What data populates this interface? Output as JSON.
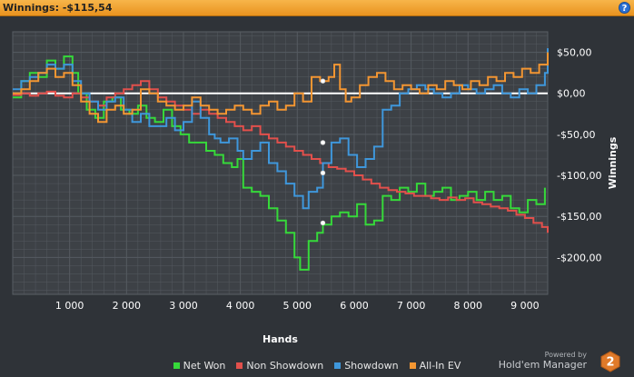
{
  "header": {
    "title": "Winnings: -$115,54",
    "help_icon": "help-icon"
  },
  "brand": {
    "powered": "Powered by",
    "name": "Hold'em Manager",
    "badge": "2"
  },
  "colors": {
    "background": "#2f3338",
    "plot_bg": "#3d4146",
    "grid": "#555a60",
    "zero_line": "#ffffff",
    "text": "#ffffff"
  },
  "chart_data": {
    "type": "line",
    "xlabel": "Hands",
    "ylabel": "Winnings",
    "xlim": [
      0,
      9400
    ],
    "ylim": [
      -245,
      75
    ],
    "x_ticks": [
      1000,
      2000,
      3000,
      4000,
      5000,
      6000,
      7000,
      8000,
      9000
    ],
    "x_tick_labels": [
      "1 000",
      "2 000",
      "3 000",
      "4 000",
      "5 000",
      "6 000",
      "7 000",
      "8 000",
      "9 000"
    ],
    "y_ticks": [
      50,
      0,
      -50,
      -100,
      -150,
      -200
    ],
    "y_tick_labels": [
      "$50,00",
      "$0,00",
      "-$50,00",
      "-$100,00",
      "-$150,00",
      "-$200,00"
    ],
    "grid": true,
    "legend_position": "bottom",
    "series": [
      {
        "name": "Net Won",
        "color": "#36d93a",
        "x": [
          0,
          150,
          300,
          450,
          600,
          750,
          900,
          1050,
          1150,
          1300,
          1450,
          1600,
          1750,
          1900,
          2050,
          2200,
          2350,
          2500,
          2650,
          2800,
          2950,
          3100,
          3250,
          3400,
          3550,
          3700,
          3850,
          3950,
          4050,
          4200,
          4350,
          4500,
          4650,
          4800,
          4950,
          5050,
          5200,
          5350,
          5450,
          5600,
          5750,
          5900,
          6050,
          6200,
          6350,
          6500,
          6650,
          6800,
          6950,
          7100,
          7250,
          7400,
          7550,
          7700,
          7850,
          8000,
          8150,
          8300,
          8450,
          8600,
          8750,
          8900,
          9050,
          9200,
          9350
        ],
        "y": [
          -5,
          15,
          25,
          20,
          40,
          30,
          45,
          25,
          0,
          -20,
          -30,
          -10,
          -5,
          -20,
          -25,
          -15,
          -30,
          -35,
          -20,
          -40,
          -50,
          -60,
          -60,
          -70,
          -75,
          -85,
          -90,
          -80,
          -115,
          -120,
          -125,
          -140,
          -155,
          -170,
          -200,
          -215,
          -180,
          -170,
          -160,
          -150,
          -145,
          -150,
          -135,
          -160,
          -155,
          -125,
          -130,
          -115,
          -120,
          -110,
          -125,
          -120,
          -115,
          -130,
          -125,
          -120,
          -130,
          -120,
          -130,
          -125,
          -140,
          -145,
          -130,
          -135,
          -115
        ]
      },
      {
        "name": "Non Showdown",
        "color": "#e2504c",
        "x": [
          0,
          150,
          300,
          450,
          600,
          750,
          900,
          1050,
          1200,
          1350,
          1500,
          1650,
          1800,
          1950,
          2100,
          2250,
          2400,
          2550,
          2700,
          2850,
          3000,
          3150,
          3300,
          3450,
          3600,
          3750,
          3900,
          4050,
          4200,
          4350,
          4500,
          4650,
          4800,
          4950,
          5100,
          5250,
          5400,
          5550,
          5700,
          5850,
          6000,
          6150,
          6300,
          6450,
          6600,
          6750,
          6900,
          7050,
          7200,
          7350,
          7500,
          7650,
          7800,
          7950,
          8100,
          8250,
          8400,
          8550,
          8700,
          8850,
          9000,
          9150,
          9300,
          9400
        ],
        "y": [
          -2,
          0,
          -3,
          0,
          2,
          -3,
          -5,
          0,
          -5,
          -10,
          -15,
          -5,
          0,
          5,
          10,
          15,
          5,
          -5,
          -10,
          -15,
          -20,
          -25,
          -20,
          -25,
          -30,
          -35,
          -40,
          -45,
          -40,
          -50,
          -55,
          -60,
          -65,
          -70,
          -75,
          -80,
          -85,
          -90,
          -92,
          -95,
          -100,
          -105,
          -110,
          -115,
          -118,
          -120,
          -122,
          -125,
          -125,
          -128,
          -130,
          -127,
          -130,
          -128,
          -133,
          -135,
          -138,
          -140,
          -143,
          -148,
          -152,
          -158,
          -163,
          -170
        ]
      },
      {
        "name": "Showdown",
        "color": "#3f97db",
        "x": [
          0,
          150,
          300,
          450,
          600,
          750,
          900,
          1050,
          1200,
          1350,
          1500,
          1650,
          1800,
          1950,
          2100,
          2250,
          2400,
          2550,
          2700,
          2850,
          3000,
          3150,
          3300,
          3450,
          3550,
          3650,
          3800,
          3950,
          4050,
          4200,
          4350,
          4500,
          4650,
          4800,
          4950,
          5100,
          5200,
          5350,
          5450,
          5600,
          5750,
          5900,
          6050,
          6200,
          6350,
          6500,
          6650,
          6800,
          6950,
          7100,
          7250,
          7400,
          7550,
          7700,
          7850,
          8000,
          8150,
          8300,
          8450,
          8600,
          8750,
          8900,
          9050,
          9200,
          9350,
          9400
        ],
        "y": [
          5,
          15,
          20,
          25,
          35,
          30,
          35,
          15,
          0,
          -10,
          -20,
          -10,
          -5,
          -20,
          -35,
          -25,
          -40,
          -40,
          -30,
          -45,
          -35,
          -10,
          -30,
          -50,
          -55,
          -60,
          -55,
          -70,
          -80,
          -70,
          -60,
          -85,
          -95,
          -110,
          -125,
          -140,
          -120,
          -115,
          -85,
          -60,
          -55,
          -75,
          -90,
          -80,
          -65,
          -20,
          -15,
          0,
          5,
          10,
          5,
          0,
          -5,
          0,
          10,
          5,
          0,
          5,
          10,
          0,
          -5,
          5,
          0,
          10,
          25,
          55
        ]
      },
      {
        "name": "All-In EV",
        "color": "#f39632",
        "x": [
          0,
          150,
          300,
          450,
          600,
          750,
          900,
          1050,
          1200,
          1350,
          1500,
          1650,
          1800,
          1950,
          2100,
          2250,
          2400,
          2550,
          2700,
          2850,
          3000,
          3150,
          3300,
          3450,
          3600,
          3750,
          3900,
          4050,
          4200,
          4350,
          4500,
          4650,
          4800,
          4950,
          5100,
          5250,
          5400,
          5550,
          5650,
          5750,
          5850,
          5950,
          6100,
          6250,
          6400,
          6550,
          6700,
          6850,
          7000,
          7150,
          7300,
          7450,
          7600,
          7750,
          7900,
          8050,
          8200,
          8350,
          8500,
          8650,
          8800,
          8950,
          9100,
          9250,
          9400
        ],
        "y": [
          0,
          5,
          15,
          25,
          30,
          20,
          25,
          10,
          -10,
          -25,
          -35,
          -20,
          -15,
          -25,
          -20,
          5,
          0,
          -10,
          -15,
          -20,
          -15,
          -5,
          -15,
          -20,
          -25,
          -20,
          -15,
          -20,
          -25,
          -15,
          -10,
          -20,
          -15,
          0,
          -10,
          20,
          15,
          20,
          35,
          5,
          -10,
          -5,
          10,
          20,
          25,
          15,
          5,
          10,
          5,
          0,
          10,
          5,
          15,
          10,
          5,
          15,
          10,
          20,
          15,
          25,
          20,
          30,
          25,
          35,
          50
        ]
      }
    ],
    "annotations": [
      {
        "series": "Net Won",
        "x": 5450,
        "y": -158
      },
      {
        "series": "Non Showdown",
        "x": 5450,
        "y": -97
      },
      {
        "series": "Showdown",
        "x": 5450,
        "y": -60
      },
      {
        "series": "All-In EV",
        "x": 5450,
        "y": 15
      }
    ]
  }
}
